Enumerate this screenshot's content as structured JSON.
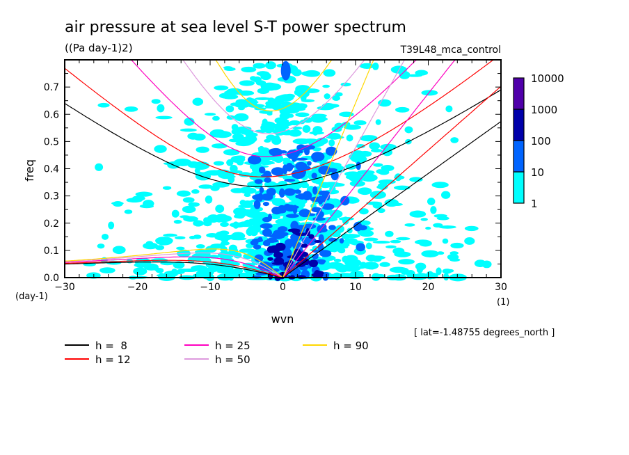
{
  "chart_data": {
    "type": "heatmap",
    "title": "air pressure at sea level S-T power spectrum",
    "subtitle": "((Pa day-1)2)",
    "experiment": "T39L48_mca_control",
    "xlabel": "wvn",
    "ylabel": "freq",
    "x_unit": "(1)",
    "y_unit": "(day-1)",
    "xlim": [
      -30,
      30
    ],
    "ylim": [
      0,
      0.8
    ],
    "x_ticks": [
      "-30",
      "-20",
      "-10",
      "0",
      "10",
      "20",
      "30"
    ],
    "y_ticks": [
      "0.0",
      "0.1",
      "0.2",
      "0.3",
      "0.4",
      "0.5",
      "0.6",
      "0.7"
    ],
    "annotation": "[ lat=-1.48755 degrees_north ]",
    "colorbar": {
      "scale": "log",
      "levels": [
        "1",
        "10",
        "100",
        "1000",
        "10000"
      ],
      "colors": [
        "#00ffff",
        "#0064ff",
        "#0000aa",
        "#5000aa"
      ]
    },
    "dispersion_curves": [
      {
        "label": "h =  8",
        "h": 8,
        "color": "#000000"
      },
      {
        "label": "h = 12",
        "h": 12,
        "color": "#ff0000"
      },
      {
        "label": "h = 25",
        "h": 25,
        "color": "#ff00c0"
      },
      {
        "label": "h = 50",
        "h": 50,
        "color": "#dd99dd"
      },
      {
        "label": "h = 90",
        "h": 90,
        "color": "#ffd700"
      }
    ]
  }
}
